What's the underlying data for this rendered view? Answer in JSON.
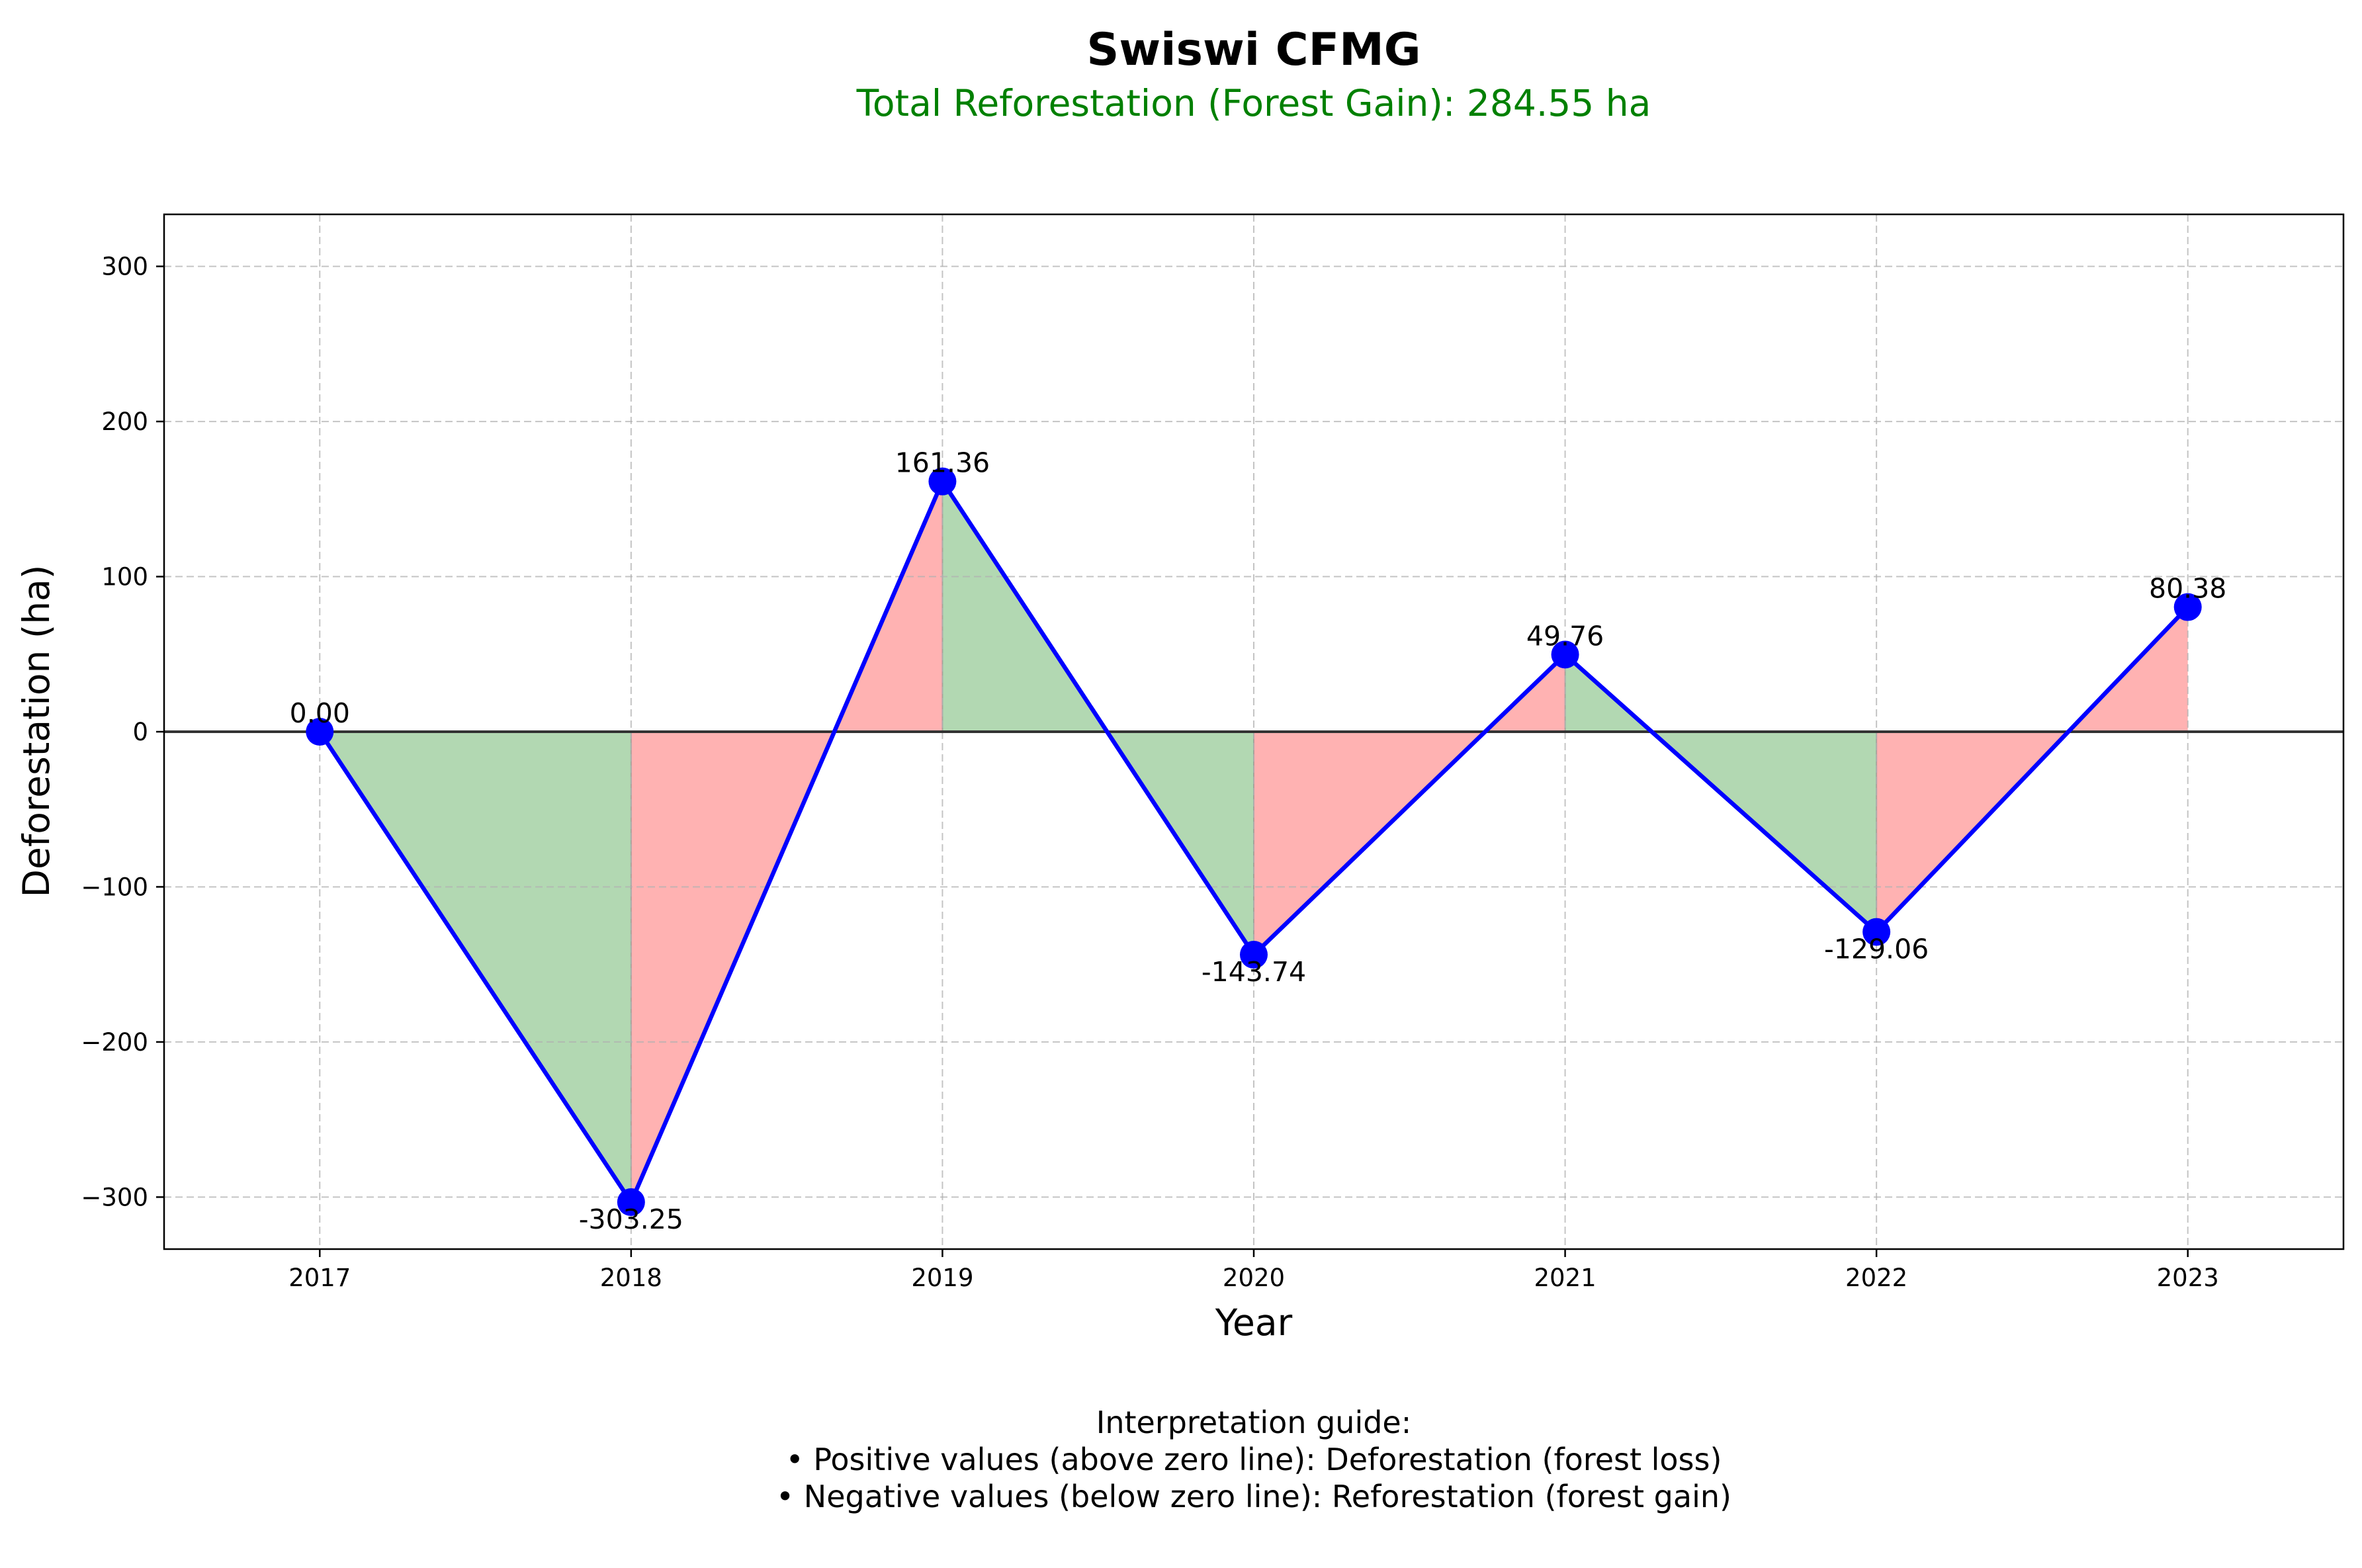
{
  "chart_data": {
    "type": "line",
    "title": "Swiswi CFMG",
    "subtitle": "Total Reforestation (Forest Gain): 284.55 ha",
    "xlabel": "Year",
    "ylabel": "Deforestation (ha)",
    "x": [
      "2017",
      "2018",
      "2019",
      "2020",
      "2021",
      "2022",
      "2023"
    ],
    "series": [
      {
        "values": [
          0.0,
          -303.25,
          161.36,
          -143.74,
          49.76,
          -129.06,
          80.38
        ],
        "labels": [
          "0.00",
          "-303.25",
          "161.36",
          "-143.74",
          "49.76",
          "-129.06",
          "80.38"
        ]
      }
    ],
    "ylim": [
      -333.53,
      333.53
    ],
    "yticks": [
      {
        "value": 300,
        "label": "300"
      },
      {
        "value": 200,
        "label": "200"
      },
      {
        "value": 100,
        "label": "100"
      },
      {
        "value": 0,
        "label": "0"
      },
      {
        "value": -100,
        "label": "−100"
      },
      {
        "value": -200,
        "label": "−200"
      },
      {
        "value": -300,
        "label": "−300"
      }
    ],
    "grid": true,
    "fill_colors": {
      "gain": "#b2d8b2",
      "loss": "#ffb2b2"
    },
    "line_color": "#0000ff",
    "marker_color": "#0000ff",
    "zero_line_color": "#333333"
  },
  "guide": {
    "lines": [
      "Interpretation guide:",
      "• Positive values (above zero line): Deforestation (forest loss)",
      "• Negative values (below zero line): Reforestation (forest gain)"
    ]
  }
}
